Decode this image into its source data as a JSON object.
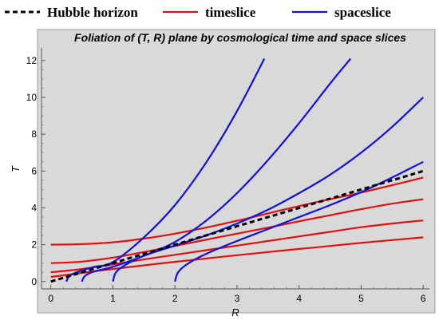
{
  "chart_data": {
    "type": "line",
    "title": "Foliation of (T,  R) plane by  cosmological time and space slices",
    "xlabel": "R",
    "ylabel": "T",
    "xlim": [
      -0.15,
      6.1
    ],
    "ylim": [
      -0.4,
      12.6
    ],
    "xticks": [
      "0",
      "1",
      "2",
      "3",
      "4",
      "5",
      "6"
    ],
    "yticks": [
      "0",
      "2",
      "4",
      "6",
      "8",
      "10",
      "12"
    ],
    "grid": false,
    "legend_position": "top",
    "background": "#d9d9d9",
    "legend": [
      {
        "label": "Hubble horizon",
        "color": "#000000",
        "style": "dashed"
      },
      {
        "label": "timeslice",
        "color": "#e01010",
        "style": "solid"
      },
      {
        "label": "spaceslice",
        "color": "#1010dd",
        "style": "solid"
      }
    ],
    "series": [
      {
        "group": "Hubble horizon",
        "color": "#000000",
        "x": [
          0,
          1,
          2,
          3,
          4,
          5,
          6
        ],
        "y": [
          0,
          1,
          2,
          3,
          4,
          5,
          6
        ]
      },
      {
        "group": "timeslice",
        "color": "#e01010",
        "x": [
          0,
          0.5,
          1,
          1.5,
          2,
          2.5,
          3,
          3.5,
          4,
          4.5,
          5,
          5.5,
          6
        ],
        "y": [
          2.0,
          2.03,
          2.13,
          2.33,
          2.6,
          2.93,
          3.3,
          3.7,
          4.1,
          4.47,
          4.83,
          5.23,
          5.65
        ]
      },
      {
        "group": "timeslice",
        "color": "#e01010",
        "x": [
          0,
          0.5,
          1,
          1.5,
          2,
          2.5,
          3,
          3.5,
          4,
          4.5,
          5,
          5.5,
          6
        ],
        "y": [
          1.0,
          1.08,
          1.3,
          1.6,
          1.93,
          2.27,
          2.6,
          2.93,
          3.27,
          3.6,
          3.93,
          4.23,
          4.47
        ]
      },
      {
        "group": "timeslice",
        "color": "#e01010",
        "x": [
          0,
          0.5,
          1,
          1.5,
          2,
          2.5,
          3,
          3.5,
          4,
          4.5,
          5,
          5.5,
          6
        ],
        "y": [
          0.5,
          0.68,
          0.93,
          1.2,
          1.45,
          1.7,
          1.95,
          2.2,
          2.45,
          2.7,
          2.95,
          3.15,
          3.32
        ]
      },
      {
        "group": "timeslice",
        "color": "#e01010",
        "x": [
          0,
          0.5,
          1,
          1.5,
          2,
          2.5,
          3,
          3.5,
          4,
          4.5,
          5,
          5.5,
          6
        ],
        "y": [
          0.25,
          0.47,
          0.68,
          0.88,
          1.07,
          1.25,
          1.43,
          1.6,
          1.77,
          1.93,
          2.1,
          2.25,
          2.4
        ]
      },
      {
        "group": "spaceslice",
        "color": "#1010dd",
        "x": [
          0.25,
          0.3,
          0.45,
          0.7,
          1.0,
          1.5,
          2.0,
          2.5,
          3.0,
          3.44
        ],
        "y": [
          0,
          0.3,
          0.55,
          0.8,
          1.05,
          2.4,
          4.15,
          6.45,
          9.25,
          12.1
        ]
      },
      {
        "group": "spaceslice",
        "color": "#1010dd",
        "x": [
          0.5,
          0.55,
          0.7,
          1.0,
          1.5,
          2.0,
          2.5,
          3.0,
          3.5,
          4.0,
          4.5,
          4.83
        ],
        "y": [
          0,
          0.3,
          0.55,
          0.8,
          1.4,
          2.15,
          3.3,
          4.8,
          6.6,
          8.6,
          10.75,
          12.1
        ]
      },
      {
        "group": "spaceslice",
        "color": "#1010dd",
        "x": [
          1.0,
          1.05,
          1.2,
          1.5,
          2.0,
          2.5,
          3.0,
          3.5,
          4.0,
          4.5,
          5.0,
          5.5,
          6.0
        ],
        "y": [
          0,
          0.5,
          0.9,
          1.4,
          1.95,
          2.5,
          3.15,
          3.9,
          4.8,
          5.8,
          7.0,
          8.4,
          10.0
        ]
      },
      {
        "group": "spaceslice",
        "color": "#1010dd",
        "x": [
          2.0,
          2.05,
          2.2,
          2.5,
          3.0,
          3.5,
          4.0,
          4.5,
          5.0,
          5.5,
          6.0
        ],
        "y": [
          0,
          0.5,
          0.95,
          1.5,
          2.2,
          2.85,
          3.5,
          4.15,
          4.85,
          5.65,
          6.5
        ]
      }
    ]
  }
}
